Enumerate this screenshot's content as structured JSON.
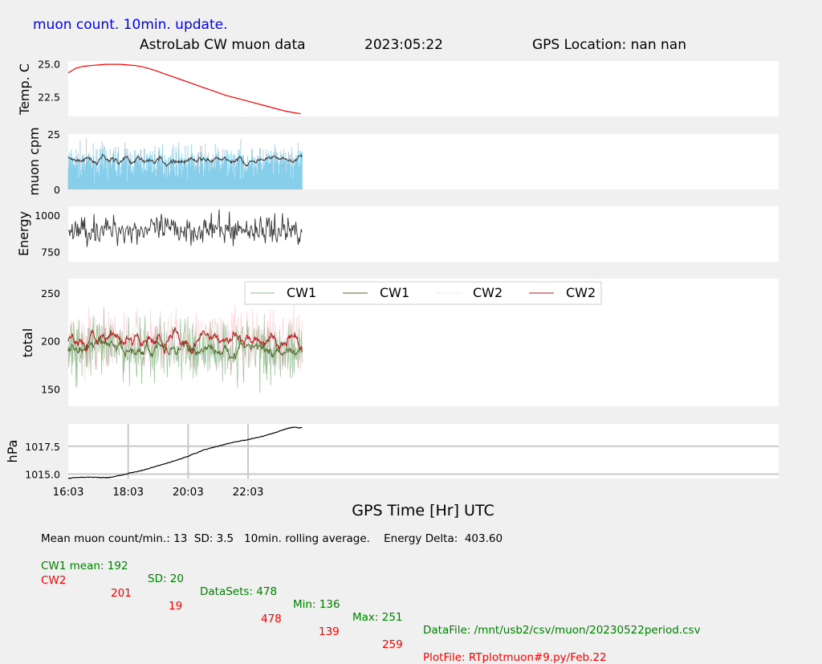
{
  "header": {
    "update_label": "muon count.  10min. update.",
    "title": "AstroLab CW muon data",
    "date": "2023:05:22",
    "gps_location": "GPS Location: nan   nan"
  },
  "colors": {
    "update_label": "#0000ff",
    "temp_line": "#ff0000",
    "muon_bars": "#87ceeb",
    "muon_avg": "#333333",
    "energy_line": "#333333",
    "cw1_raw": "#8fbc8f",
    "cw1_avg": "#556b2f",
    "cw2_raw": "#ffc0cb",
    "cw2_avg": "#b22222",
    "pressure_line": "#000000",
    "grid": "#c8c8c8",
    "footer_cw1": "#008000",
    "footer_cw2": "#ff0000"
  },
  "chart_data": [
    {
      "type": "line",
      "panel": "temperature",
      "ylabel": "Temp. C",
      "yticks": [
        22.5,
        25.0
      ],
      "ylim": [
        21.0,
        25.2
      ],
      "x_hours": [
        0,
        0.25,
        0.5,
        0.75,
        1.0,
        1.25,
        1.5,
        1.75,
        2.0,
        2.25,
        2.5,
        2.75,
        3.0,
        3.25,
        3.5,
        3.75,
        4.0,
        4.25,
        4.5,
        4.75,
        5.0,
        5.25,
        5.5,
        5.75,
        6.0,
        6.25,
        6.5,
        6.75,
        7.0,
        7.25,
        7.5,
        7.75
      ],
      "values": [
        24.3,
        24.65,
        24.8,
        24.85,
        24.9,
        24.95,
        24.95,
        24.95,
        24.9,
        24.85,
        24.75,
        24.6,
        24.4,
        24.2,
        24.0,
        23.8,
        23.6,
        23.4,
        23.2,
        23.0,
        22.8,
        22.6,
        22.45,
        22.3,
        22.15,
        22.0,
        21.85,
        21.7,
        21.55,
        21.4,
        21.3,
        21.2
      ]
    },
    {
      "type": "bar",
      "panel": "muon_cpm",
      "ylabel": "muon cpm",
      "yticks": [
        0,
        25
      ],
      "ylim": [
        0,
        25
      ],
      "x_range_hours": [
        0,
        7.8
      ],
      "mean": 13,
      "sd": 3.5,
      "rolling_average_minutes": 10
    },
    {
      "type": "line",
      "panel": "energy",
      "ylabel": "Energy",
      "yticks": [
        750,
        1000
      ],
      "ylim": [
        680,
        1060
      ],
      "x_range_hours": [
        0,
        7.8
      ],
      "center": 900,
      "spread": 55
    },
    {
      "type": "line",
      "panel": "total",
      "ylabel": "total",
      "yticks": [
        150,
        200,
        250
      ],
      "ylim": [
        132,
        265
      ],
      "x_range_hours": [
        0,
        7.8
      ],
      "legend": {
        "placement": "top-right",
        "entries": [
          "CW1",
          "CW1",
          "CW2",
          "CW2"
        ]
      },
      "series": [
        {
          "name": "CW1",
          "role": "raw",
          "mean": 192,
          "sd": 20,
          "min": 136,
          "max": 251
        },
        {
          "name": "CW1",
          "role": "rolling average",
          "mean": 192
        },
        {
          "name": "CW2",
          "role": "raw",
          "mean": 201,
          "sd": 19,
          "min": 139,
          "max": 259
        },
        {
          "name": "CW2",
          "role": "rolling average",
          "mean": 201
        }
      ]
    },
    {
      "type": "line",
      "panel": "pressure",
      "ylabel": "hPa",
      "yticks": [
        1015.0,
        1017.5
      ],
      "ylim": [
        1014.6,
        1019.5
      ],
      "grid": true,
      "x_hours": [
        0,
        0.5,
        1.0,
        1.3,
        1.5,
        2.0,
        2.5,
        3.0,
        3.5,
        4.0,
        4.5,
        5.0,
        5.5,
        6.0,
        6.5,
        7.0,
        7.3,
        7.5,
        7.8
      ],
      "values": [
        1014.65,
        1014.7,
        1014.7,
        1014.68,
        1014.75,
        1015.05,
        1015.35,
        1015.75,
        1016.15,
        1016.6,
        1017.15,
        1017.5,
        1017.85,
        1018.1,
        1018.4,
        1018.8,
        1019.1,
        1019.2,
        1019.15
      ]
    }
  ],
  "x_axis": {
    "label": "GPS Time  [Hr] UTC",
    "ticks": [
      "16:03",
      "18:03",
      "20:03",
      "22:03"
    ],
    "tick_hours": [
      0,
      2,
      4,
      6
    ],
    "range_hours": [
      0,
      23.7
    ]
  },
  "footer": {
    "line1": "Mean muon count/min.: 13  SD: 3.5   10min. rolling average.    Energy Delta:  403.60",
    "cw1": {
      "name": "CW1 mean: 192",
      "sd": "SD: 20",
      "datasets": "DataSets: 478",
      "min": "Min: 136",
      "max": "Max: 251",
      "file": "DataFile: /mnt/usb2/csv/muon/20230522period.csv"
    },
    "cw2": {
      "name": "CW2",
      "mean": "201",
      "sd": "19",
      "datasets": "478",
      "min": "139",
      "max": "259",
      "file": "PlotFile: RTplotmuon#9.py/Feb.22"
    }
  }
}
